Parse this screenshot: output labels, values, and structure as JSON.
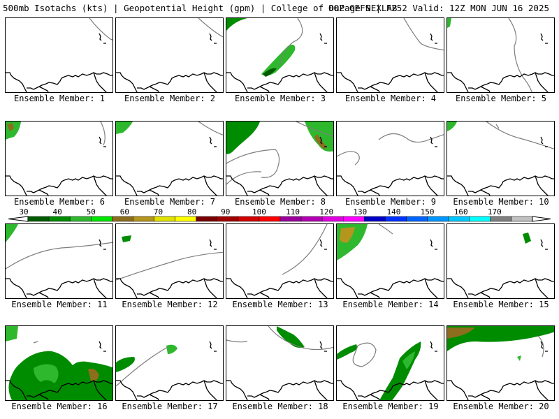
{
  "header": {
    "left": "500mb Isotachs (kts) | Geopotential Height (gpm) | College of DuPage NEXLAB",
    "right": "00Z GEFS | F252 Valid: 12Z MON JUN 16 2025"
  },
  "colorbar": {
    "labels": [
      "30",
      "40",
      "50",
      "60",
      "70",
      "80",
      "90",
      "100",
      "110",
      "120",
      "130",
      "140",
      "150",
      "160",
      "170"
    ],
    "colors": [
      "#005a00",
      "#008c00",
      "#2eb82e",
      "#00e600",
      "#8c6e1e",
      "#b4961e",
      "#e1e100",
      "#ffff00",
      "#7a0000",
      "#a00000",
      "#d20000",
      "#ff0000",
      "#9c009c",
      "#b400b4",
      "#e100e1",
      "#ff00ff",
      "#0000c8",
      "#0032ff",
      "#0064ff",
      "#0096ff",
      "#00c8ff",
      "#00ffff",
      "#808080",
      "#c0c0c0"
    ]
  },
  "panels": [
    {
      "label": "Ensemble Member: 1"
    },
    {
      "label": "Ensemble Member: 2"
    },
    {
      "label": "Ensemble Member: 3"
    },
    {
      "label": "Ensemble Member: 4"
    },
    {
      "label": "Ensemble Member: 5"
    },
    {
      "label": "Ensemble Member: 6"
    },
    {
      "label": "Ensemble Member: 7"
    },
    {
      "label": "Ensemble Member: 8"
    },
    {
      "label": "Ensemble Member: 9"
    },
    {
      "label": "Ensemble Member: 10"
    },
    {
      "label": "Ensemble Member: 11"
    },
    {
      "label": "Ensemble Member: 12"
    },
    {
      "label": "Ensemble Member: 13"
    },
    {
      "label": "Ensemble Member: 14"
    },
    {
      "label": "Ensemble Member: 15"
    },
    {
      "label": "Ensemble Member: 16"
    },
    {
      "label": "Ensemble Member: 17"
    },
    {
      "label": "Ensemble Member: 18"
    },
    {
      "label": "Ensemble Member: 19"
    },
    {
      "label": "Ensemble Member: 20"
    }
  ]
}
